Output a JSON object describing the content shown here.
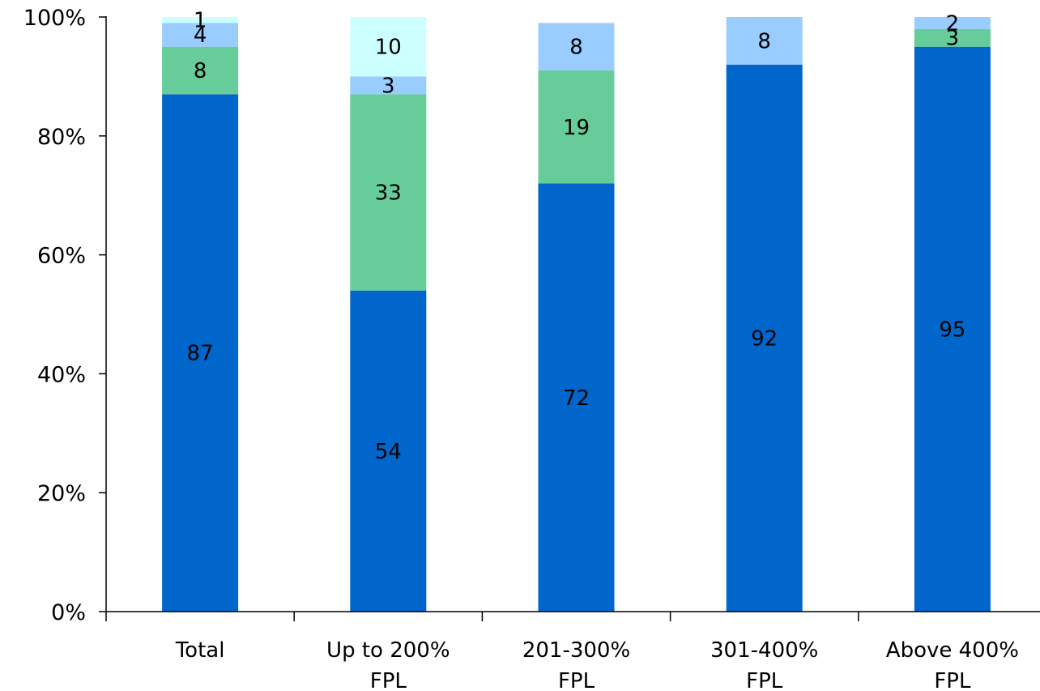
{
  "chart_data": {
    "type": "bar",
    "stacked": true,
    "title": "",
    "xlabel": "",
    "ylabel": "",
    "ylim": [
      0,
      100
    ],
    "y_ticks": [
      "0%",
      "20%",
      "40%",
      "60%",
      "80%",
      "100%"
    ],
    "y_tick_values": [
      0,
      20,
      40,
      60,
      80,
      100
    ],
    "categories": [
      [
        "Total"
      ],
      [
        "Up to 200%",
        "FPL"
      ],
      [
        "201-300%",
        "FPL"
      ],
      [
        "301-400%",
        "FPL"
      ],
      [
        "Above 400%",
        "FPL"
      ]
    ],
    "series": [
      {
        "color": "#0066CC",
        "values": [
          87,
          54,
          72,
          92,
          95
        ]
      },
      {
        "color": "#66CC99",
        "values": [
          8,
          33,
          19,
          0,
          3
        ]
      },
      {
        "color": "#99CCFF",
        "values": [
          4,
          3,
          8,
          8,
          2
        ]
      },
      {
        "color": "#CCFFFF",
        "values": [
          1,
          10,
          0,
          0,
          0
        ]
      }
    ],
    "data_labels": [
      [
        "87",
        "8",
        "4",
        "1"
      ],
      [
        "54",
        "33",
        "3",
        "10"
      ],
      [
        "72",
        "19",
        "8",
        ""
      ],
      [
        "92",
        "",
        "8",
        ""
      ],
      [
        "95",
        "3",
        "2",
        ""
      ]
    ],
    "grid": false,
    "legend": "none"
  }
}
